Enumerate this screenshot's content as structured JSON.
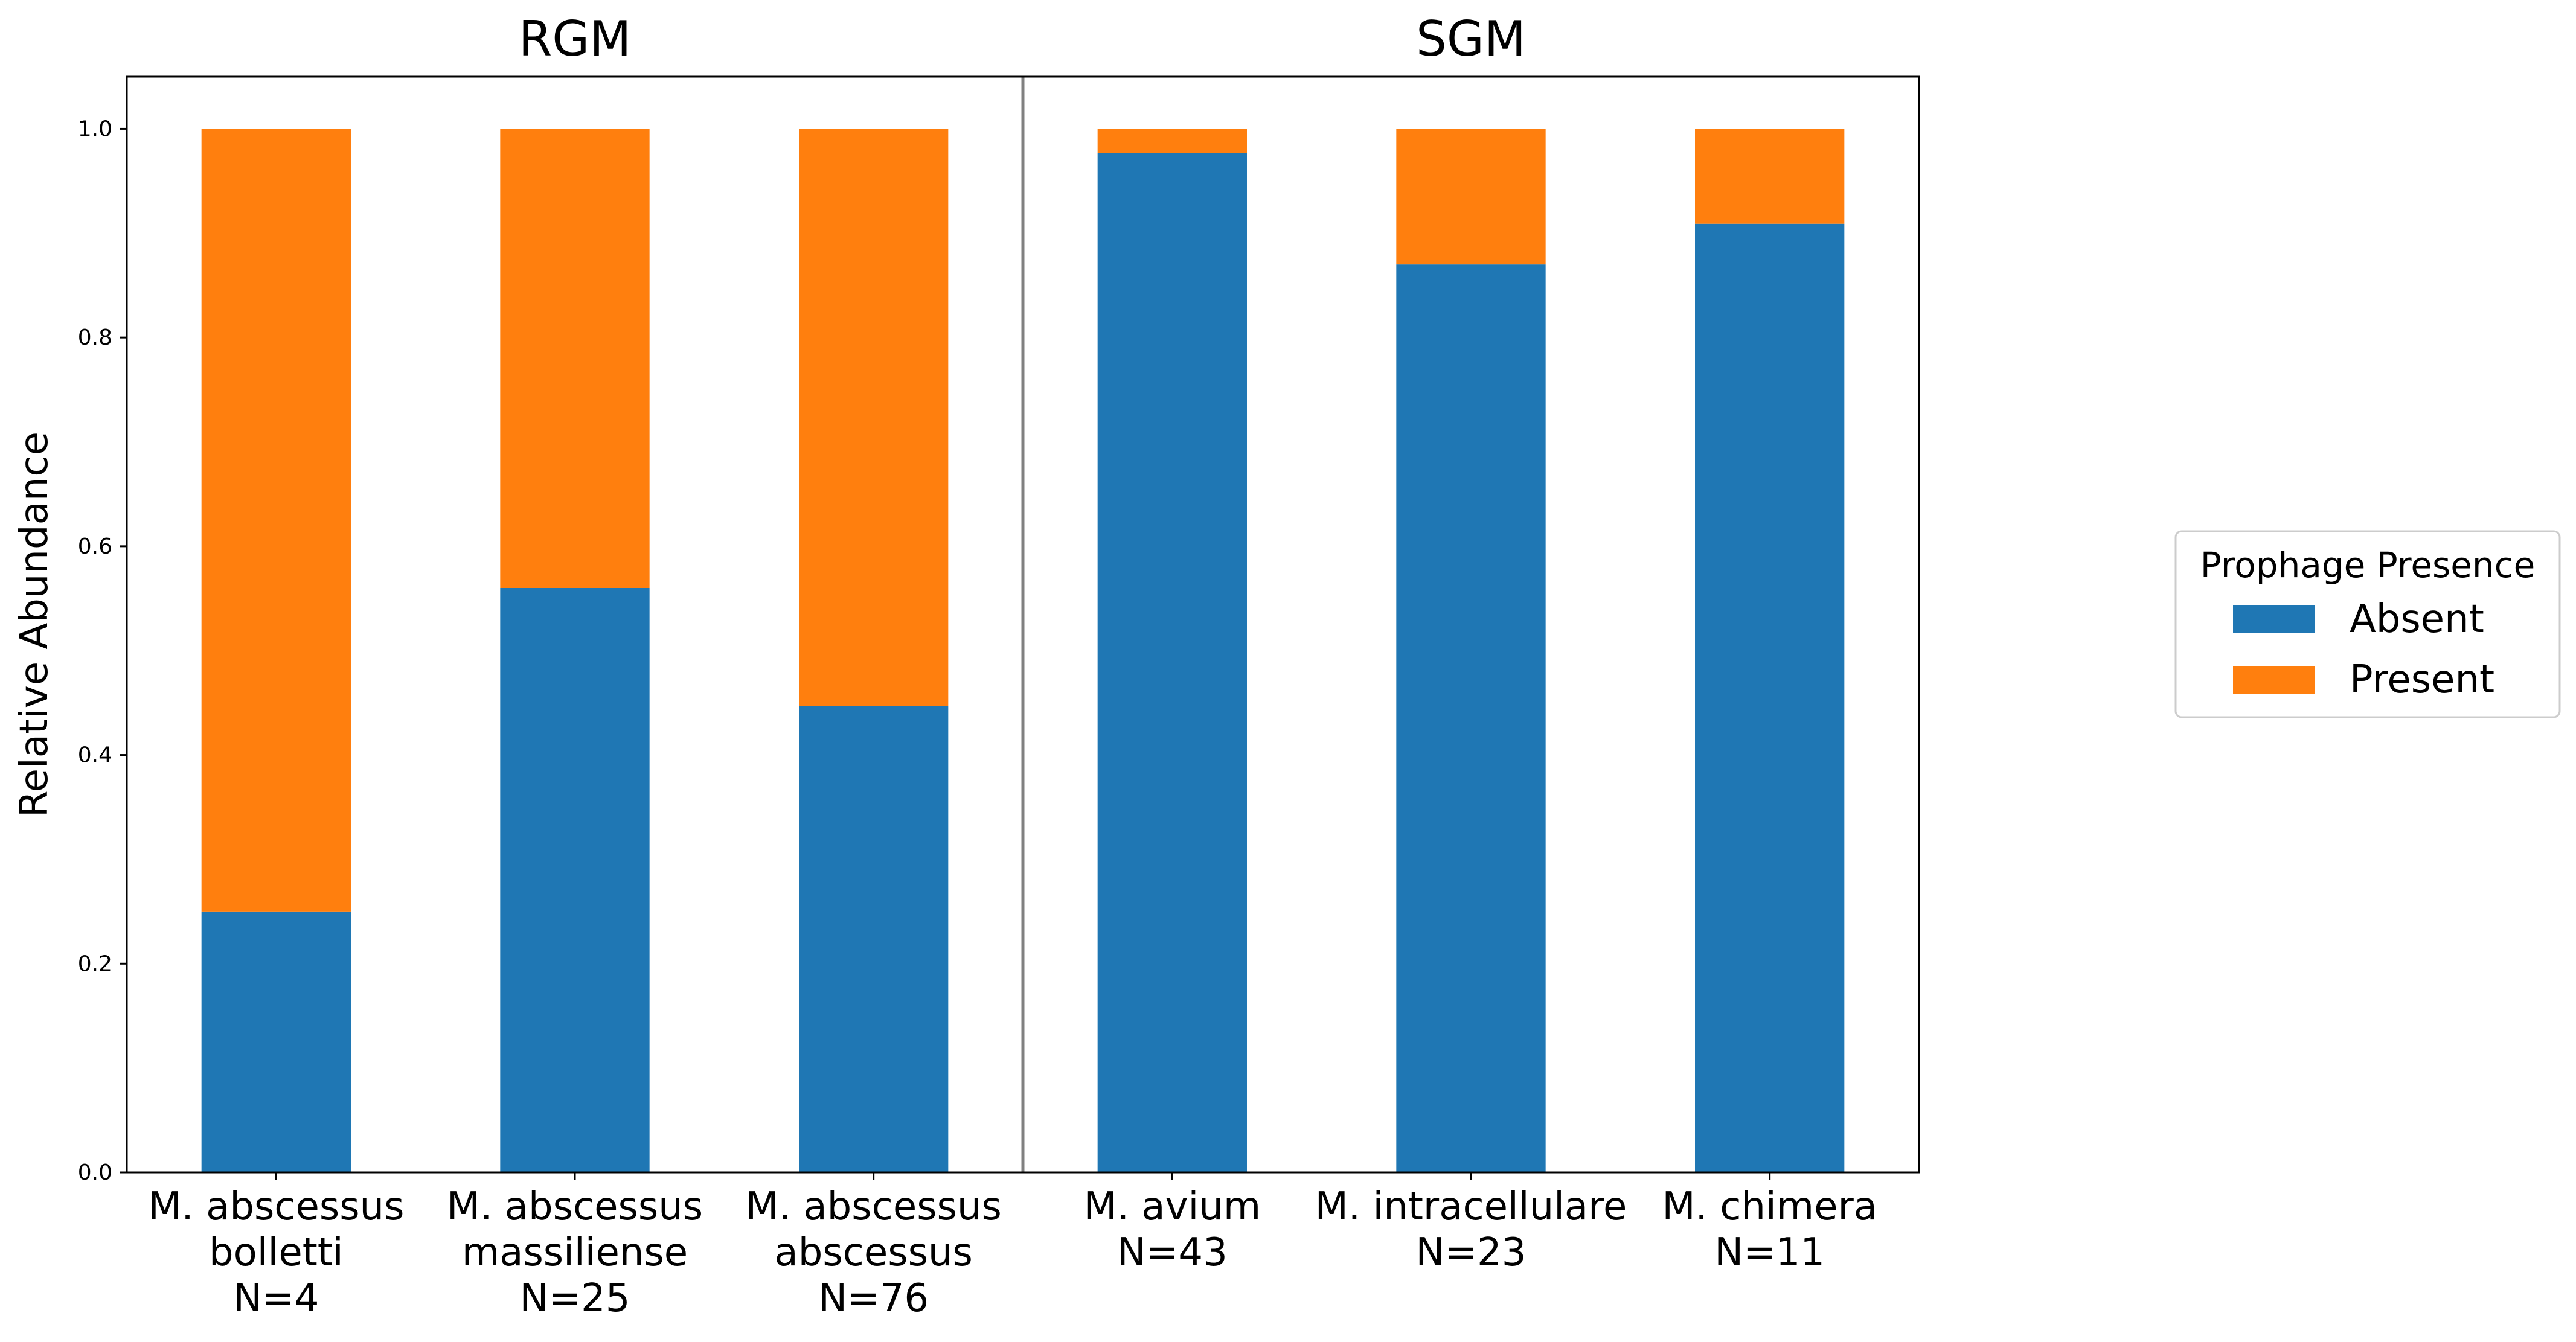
{
  "chart_data": {
    "type": "bar",
    "stacked": true,
    "title": "",
    "xlabel": "",
    "ylabel": "Relative Abundance",
    "ylim": [
      0,
      1.05
    ],
    "yticks": [
      "0.0",
      "0.2",
      "0.4",
      "0.6",
      "0.8",
      "1.0"
    ],
    "grid": false,
    "groups": [
      {
        "title": "RGM",
        "category_indices": [
          0,
          1,
          2
        ]
      },
      {
        "title": "SGM",
        "category_indices": [
          3,
          4,
          5
        ]
      }
    ],
    "categories": [
      {
        "lines": [
          "M. abscessus",
          "bolletti",
          "N=4"
        ]
      },
      {
        "lines": [
          "M. abscessus",
          "massiliense",
          "N=25"
        ]
      },
      {
        "lines": [
          "M. abscessus",
          "abscessus",
          "N=76"
        ]
      },
      {
        "lines": [
          "M. avium",
          "N=43"
        ]
      },
      {
        "lines": [
          "M. intracellulare",
          "N=23"
        ]
      },
      {
        "lines": [
          "M. chimera",
          "N=11"
        ]
      }
    ],
    "series": [
      {
        "name": "Absent",
        "color": "#1f77b4",
        "values": [
          0.25,
          0.56,
          0.447,
          0.977,
          0.87,
          0.909
        ]
      },
      {
        "name": "Present",
        "color": "#ff7f0e",
        "values": [
          0.75,
          0.44,
          0.553,
          0.023,
          0.13,
          0.091
        ]
      }
    ],
    "legend": {
      "title": "Prophage Presence",
      "placement": "right"
    }
  }
}
